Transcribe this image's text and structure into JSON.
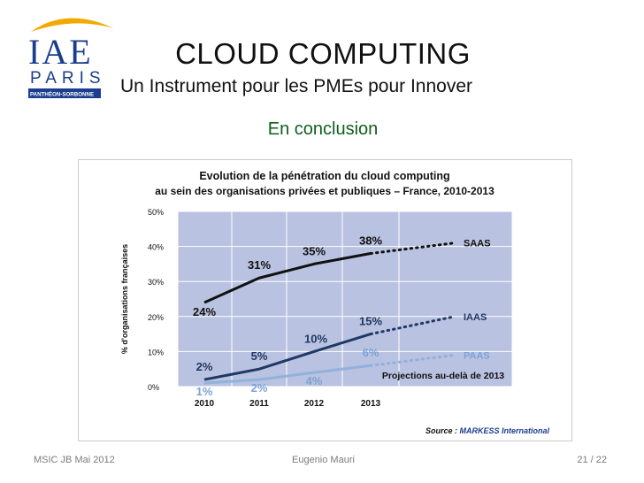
{
  "slide": {
    "title": "CLOUD COMPUTING",
    "subtitle": "Un Instrument pour les PMEs pour Innover",
    "section_heading": "En conclusion"
  },
  "logo": {
    "line1": "IAE",
    "line2": "PARIS",
    "line3": "PANTHÉON-SORBONNE",
    "color": "#1b3d8f",
    "ribbon_color": "#f2a900"
  },
  "footer": {
    "left": "MSIC JB  Mai  2012",
    "center": "Eugenio Mauri",
    "right": "21 / 22"
  },
  "chart_data": {
    "type": "line",
    "title": "Evolution de la pénétration du cloud computing",
    "subtitle": "au sein des organisations privées et publiques – France, 2010-2013",
    "ylabel": "% d'organisations françaises",
    "x": [
      "2010",
      "2011",
      "2012",
      "2013"
    ],
    "ylim": [
      0,
      50
    ],
    "yticks": [
      "0%",
      "10%",
      "20%",
      "30%",
      "40%",
      "50%"
    ],
    "grid": true,
    "plot_background": "#b9c2e0",
    "series": [
      {
        "name": "SAAS",
        "color": "#111111",
        "values": [
          24,
          31,
          35,
          38
        ],
        "data_labels": [
          "24%",
          "31%",
          "35%",
          "38%"
        ],
        "projection_2014": 41,
        "label_color": "#111111"
      },
      {
        "name": "IAAS",
        "color": "#1f3864",
        "values": [
          2,
          5,
          10,
          15
        ],
        "data_labels": [
          "2%",
          "5%",
          "10%",
          "15%"
        ],
        "projection_2014": 20,
        "label_color": "#1f3864"
      },
      {
        "name": "PAAS",
        "color": "#92b1dc",
        "values": [
          1,
          2,
          4,
          6
        ],
        "data_labels": [
          "1%",
          "2%",
          "4%",
          "6%"
        ],
        "projection_2014": 9,
        "label_color": "#7aa3d8"
      }
    ],
    "projection_note": "Projections au-delà de 2013",
    "source_prefix": "Source : ",
    "source_name": "MARKESS International"
  }
}
